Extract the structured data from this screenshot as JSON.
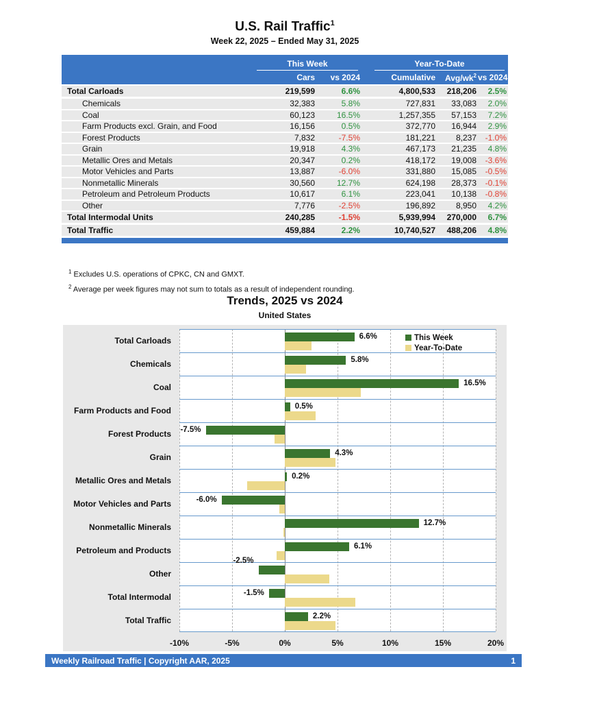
{
  "page": {
    "title": "U.S. Rail Traffic",
    "title_sup": "1",
    "subtitle": "Week 22, 2025 – Ended May 31, 2025"
  },
  "table": {
    "group_headers": {
      "this_week": "This Week",
      "year_to_date": "Year-To-Date"
    },
    "columns": {
      "cars": "Cars",
      "cars_vs": "vs 2024",
      "cumulative": "Cumulative",
      "avg_wk": "Avg/wk",
      "avg_wk_sup": "2",
      "ytd_vs": "vs 2024"
    },
    "rows": [
      {
        "label": "Total Carloads",
        "total": true,
        "cars": "219,599",
        "cars_vs": "6.6%",
        "cumulative": "4,800,533",
        "avg_wk": "218,206",
        "ytd_vs": "2.5%"
      },
      {
        "label": "Chemicals",
        "total": false,
        "cars": "32,383",
        "cars_vs": "5.8%",
        "cumulative": "727,831",
        "avg_wk": "33,083",
        "ytd_vs": "2.0%"
      },
      {
        "label": "Coal",
        "total": false,
        "cars": "60,123",
        "cars_vs": "16.5%",
        "cumulative": "1,257,355",
        "avg_wk": "57,153",
        "ytd_vs": "7.2%"
      },
      {
        "label": "Farm Products excl. Grain, and Food",
        "total": false,
        "cars": "16,156",
        "cars_vs": "0.5%",
        "cumulative": "372,770",
        "avg_wk": "16,944",
        "ytd_vs": "2.9%"
      },
      {
        "label": "Forest Products",
        "total": false,
        "cars": "7,832",
        "cars_vs": "-7.5%",
        "cumulative": "181,221",
        "avg_wk": "8,237",
        "ytd_vs": "-1.0%"
      },
      {
        "label": "Grain",
        "total": false,
        "cars": "19,918",
        "cars_vs": "4.3%",
        "cumulative": "467,173",
        "avg_wk": "21,235",
        "ytd_vs": "4.8%"
      },
      {
        "label": "Metallic Ores and Metals",
        "total": false,
        "cars": "20,347",
        "cars_vs": "0.2%",
        "cumulative": "418,172",
        "avg_wk": "19,008",
        "ytd_vs": "-3.6%"
      },
      {
        "label": "Motor Vehicles and Parts",
        "total": false,
        "cars": "13,887",
        "cars_vs": "-6.0%",
        "cumulative": "331,880",
        "avg_wk": "15,085",
        "ytd_vs": "-0.5%"
      },
      {
        "label": "Nonmetallic Minerals",
        "total": false,
        "cars": "30,560",
        "cars_vs": "12.7%",
        "cumulative": "624,198",
        "avg_wk": "28,373",
        "ytd_vs": "-0.1%"
      },
      {
        "label": "Petroleum and Petroleum Products",
        "total": false,
        "cars": "10,617",
        "cars_vs": "6.1%",
        "cumulative": "223,041",
        "avg_wk": "10,138",
        "ytd_vs": "-0.8%"
      },
      {
        "label": "Other",
        "total": false,
        "cars": "7,776",
        "cars_vs": "-2.5%",
        "cumulative": "196,892",
        "avg_wk": "8,950",
        "ytd_vs": "4.2%"
      },
      {
        "label": "Total Intermodal Units",
        "total": true,
        "cars": "240,285",
        "cars_vs": "-1.5%",
        "cumulative": "5,939,994",
        "avg_wk": "270,000",
        "ytd_vs": "6.7%"
      },
      {
        "label": "Total Traffic",
        "total": true,
        "cars": "459,884",
        "cars_vs": "2.2%",
        "cumulative": "10,740,527",
        "avg_wk": "488,206",
        "ytd_vs": "4.8%"
      }
    ]
  },
  "footnotes": [
    {
      "sup": "1",
      "text": "Excludes U.S. operations of CPKC, CN and GMXT."
    },
    {
      "sup": "2",
      "text": "Average per week figures may not sum to totals as a result of independent rounding."
    }
  ],
  "chart_data": {
    "type": "bar",
    "orientation": "horizontal",
    "title": "Trends, 2025 vs 2024",
    "subtitle": "United States",
    "categories": [
      "Total Carloads",
      "Chemicals",
      "Coal",
      "Farm Products and Food",
      "Forest Products",
      "Grain",
      "Metallic Ores and Metals",
      "Motor Vehicles and Parts",
      "Nonmetallic Minerals",
      "Petroleum and Products",
      "Other",
      "Total Intermodal",
      "Total Traffic"
    ],
    "series": [
      {
        "name": "This Week",
        "color": "#3a752f",
        "values": [
          6.6,
          5.8,
          16.5,
          0.5,
          -7.5,
          4.3,
          0.2,
          -6.0,
          12.7,
          6.1,
          -2.5,
          -1.5,
          2.2
        ]
      },
      {
        "name": "Year-To-Date",
        "color": "#ecd98b",
        "values": [
          2.5,
          2.0,
          7.2,
          2.9,
          -1.0,
          4.8,
          -3.6,
          -0.5,
          -0.1,
          -0.8,
          4.2,
          6.7,
          4.8
        ]
      }
    ],
    "bar_labels": [
      "6.6%",
      "5.8%",
      "16.5%",
      "0.5%",
      "-7.5%",
      "4.3%",
      "0.2%",
      "-6.0%",
      "12.7%",
      "6.1%",
      "-2.5%",
      "-1.5%",
      "2.2%"
    ],
    "x_ticks": [
      {
        "value": -10,
        "label": "-10%"
      },
      {
        "value": -5,
        "label": "-5%"
      },
      {
        "value": 0,
        "label": "0%"
      },
      {
        "value": 5,
        "label": "5%"
      },
      {
        "value": 10,
        "label": "10%"
      },
      {
        "value": 15,
        "label": "15%"
      },
      {
        "value": 20,
        "label": "20%"
      }
    ],
    "xlim": [
      -10,
      20
    ],
    "legend_position": "top-right-inside",
    "gridlines": "vertical-dashed-every-5pct",
    "label_above_bar_categories": [
      "Other"
    ]
  },
  "footer": {
    "left_text": "Weekly Railroad Traffic | Copyright AAR, 2025",
    "page_number": "1"
  },
  "colors": {
    "header_blue": "#3b76c4",
    "band_line_blue": "#6699cc",
    "row_gray": "#e9e9e9",
    "chart_bg": "#e8e8e8",
    "positive_green": "#2f9240",
    "negative_red": "#e04033",
    "bar_green": "#3a752f",
    "bar_tan": "#ecd98b",
    "grid_gray": "#b3b3b3",
    "zero_line_gray": "#8a8a8a"
  }
}
